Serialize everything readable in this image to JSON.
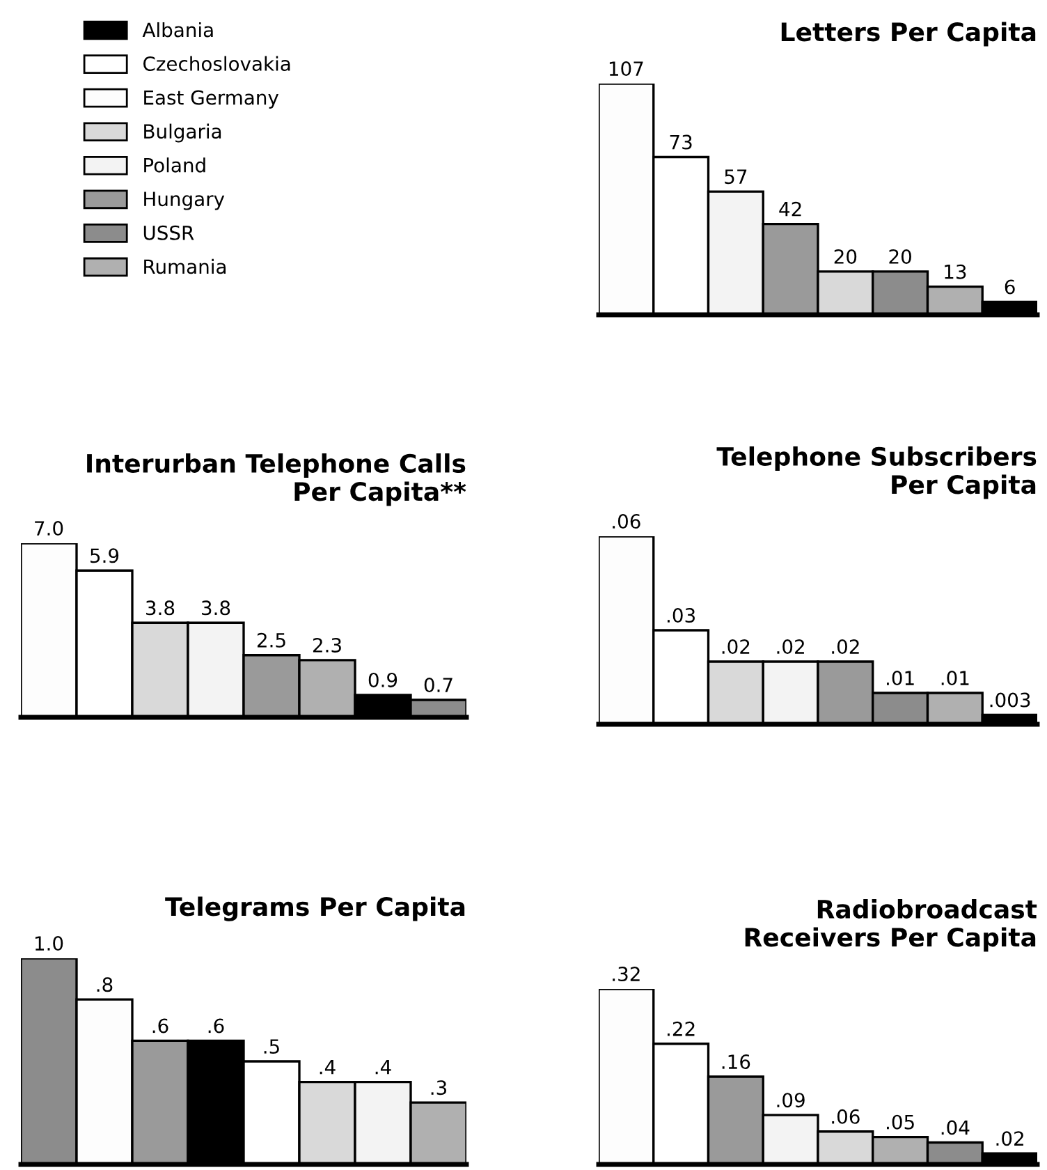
{
  "chart_data": [
    {
      "type": "other",
      "categories": [
        "Albania",
        "Czechoslovakia",
        "East Germany",
        "Bulgaria",
        "Poland",
        "Hungary",
        "USSR",
        "Rumania"
      ],
      "colors": [
        "#000000",
        "#ffffff",
        "#fdfdfd",
        "#d9d9d9",
        "#f3f3f3",
        "#9a9a9a",
        "#8c8c8c",
        "#b0b0b0"
      ]
    },
    {
      "type": "bar",
      "title": "Letters Per Capita",
      "categories": [
        null,
        null,
        null,
        null,
        null,
        null,
        null,
        null
      ],
      "values": [
        107,
        73,
        57,
        42,
        20,
        20,
        13,
        6
      ],
      "value_labels": [
        "107",
        "73",
        "57",
        "42",
        "20",
        "20",
        "13",
        "6"
      ],
      "colors": [
        "#fdfdfd",
        "#ffffff",
        "#f3f3f3",
        "#9a9a9a",
        "#d9d9d9",
        "#8c8c8c",
        "#b0b0b0",
        "#000000"
      ]
    },
    {
      "type": "bar",
      "title": "Interurban Telephone Calls\nPer Capita**",
      "categories": [
        null,
        null,
        null,
        null,
        null,
        null,
        null,
        null
      ],
      "values": [
        7.0,
        5.9,
        3.8,
        3.8,
        2.5,
        2.3,
        0.9,
        0.7
      ],
      "value_labels": [
        "7.0",
        "5.9",
        "3.8",
        "3.8",
        "2.5",
        "2.3",
        "0.9",
        "0.7"
      ],
      "colors": [
        "#fdfdfd",
        "#ffffff",
        "#d9d9d9",
        "#f3f3f3",
        "#9a9a9a",
        "#b0b0b0",
        "#000000",
        "#8c8c8c"
      ]
    },
    {
      "type": "bar",
      "title": "Telephone Subscribers\nPer Capita",
      "categories": [
        null,
        null,
        null,
        null,
        null,
        null,
        null,
        null
      ],
      "values": [
        0.06,
        0.03,
        0.02,
        0.02,
        0.02,
        0.01,
        0.01,
        0.003
      ],
      "value_labels": [
        ".06",
        ".03",
        ".02",
        ".02",
        ".02",
        ".01",
        ".01",
        ".003"
      ],
      "colors": [
        "#fdfdfd",
        "#ffffff",
        "#d9d9d9",
        "#f3f3f3",
        "#9a9a9a",
        "#8c8c8c",
        "#b0b0b0",
        "#000000"
      ]
    },
    {
      "type": "bar",
      "title": "Telegrams Per Capita",
      "categories": [
        null,
        null,
        null,
        null,
        null,
        null,
        null,
        null
      ],
      "values": [
        1.0,
        0.8,
        0.6,
        0.6,
        0.5,
        0.4,
        0.4,
        0.3
      ],
      "value_labels": [
        "1.0",
        ".8",
        ".6",
        ".6",
        ".5",
        ".4",
        ".4",
        ".3"
      ],
      "colors": [
        "#8c8c8c",
        "#fdfdfd",
        "#9a9a9a",
        "#000000",
        "#ffffff",
        "#d9d9d9",
        "#f3f3f3",
        "#b0b0b0"
      ]
    },
    {
      "type": "bar",
      "title": "Radiobroadcast\nReceivers Per Capita",
      "categories": [
        null,
        null,
        null,
        null,
        null,
        null,
        null,
        null
      ],
      "values": [
        0.32,
        0.22,
        0.16,
        0.09,
        0.06,
        0.05,
        0.04,
        0.02
      ],
      "value_labels": [
        ".32",
        ".22",
        ".16",
        ".09",
        ".06",
        ".05",
        ".04",
        ".02"
      ],
      "colors": [
        "#fdfdfd",
        "#ffffff",
        "#9a9a9a",
        "#f3f3f3",
        "#d9d9d9",
        "#b0b0b0",
        "#8c8c8c",
        "#000000"
      ]
    }
  ]
}
